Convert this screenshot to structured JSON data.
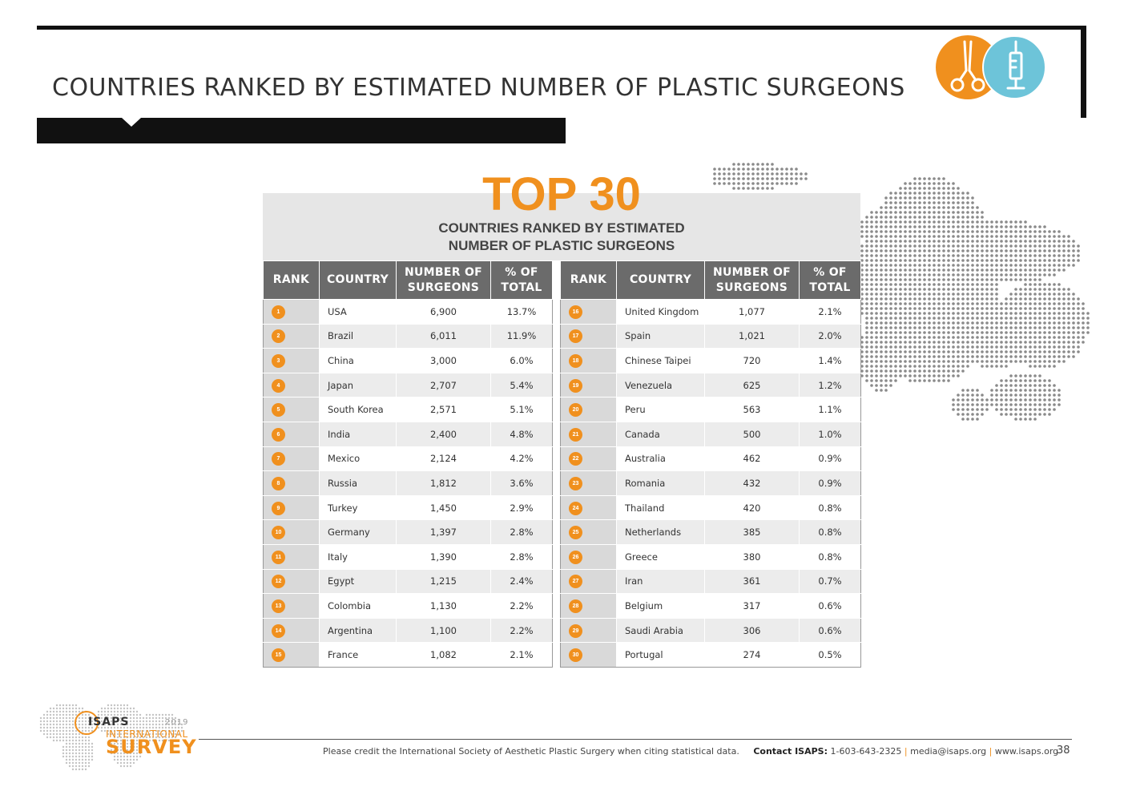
{
  "page": {
    "title": "COUNTRIES RANKED BY ESTIMATED NUMBER OF PLASTIC SURGEONS",
    "page_number": "38"
  },
  "card": {
    "headline": "TOP 30",
    "subtitle_line1": "COUNTRIES RANKED BY ESTIMATED",
    "subtitle_line2": "NUMBER OF PLASTIC SURGEONS"
  },
  "table": {
    "headers": {
      "rank": "RANK",
      "country": "COUNTRY",
      "surgeons_line1": "NUMBER OF",
      "surgeons_line2": "SURGEONS",
      "pct_line1": "% OF",
      "pct_line2": "TOTAL"
    },
    "left": [
      {
        "rank": "1",
        "country": "USA",
        "surgeons": "6,900",
        "pct": "13.7%"
      },
      {
        "rank": "2",
        "country": "Brazil",
        "surgeons": "6,011",
        "pct": "11.9%"
      },
      {
        "rank": "3",
        "country": "China",
        "surgeons": "3,000",
        "pct": "6.0%"
      },
      {
        "rank": "4",
        "country": "Japan",
        "surgeons": "2,707",
        "pct": "5.4%"
      },
      {
        "rank": "5",
        "country": "South Korea",
        "surgeons": "2,571",
        "pct": "5.1%"
      },
      {
        "rank": "6",
        "country": "India",
        "surgeons": "2,400",
        "pct": "4.8%"
      },
      {
        "rank": "7",
        "country": "Mexico",
        "surgeons": "2,124",
        "pct": "4.2%"
      },
      {
        "rank": "8",
        "country": "Russia",
        "surgeons": "1,812",
        "pct": "3.6%"
      },
      {
        "rank": "9",
        "country": "Turkey",
        "surgeons": "1,450",
        "pct": "2.9%"
      },
      {
        "rank": "10",
        "country": "Germany",
        "surgeons": "1,397",
        "pct": "2.8%"
      },
      {
        "rank": "11",
        "country": "Italy",
        "surgeons": "1,390",
        "pct": "2.8%"
      },
      {
        "rank": "12",
        "country": "Egypt",
        "surgeons": "1,215",
        "pct": "2.4%"
      },
      {
        "rank": "13",
        "country": "Colombia",
        "surgeons": "1,130",
        "pct": "2.2%"
      },
      {
        "rank": "14",
        "country": "Argentina",
        "surgeons": "1,100",
        "pct": "2.2%"
      },
      {
        "rank": "15",
        "country": "France",
        "surgeons": "1,082",
        "pct": "2.1%"
      }
    ],
    "right": [
      {
        "rank": "16",
        "country": "United Kingdom",
        "surgeons": "1,077",
        "pct": "2.1%"
      },
      {
        "rank": "17",
        "country": "Spain",
        "surgeons": "1,021",
        "pct": "2.0%"
      },
      {
        "rank": "18",
        "country": "Chinese Taipei",
        "surgeons": "720",
        "pct": "1.4%"
      },
      {
        "rank": "19",
        "country": "Venezuela",
        "surgeons": "625",
        "pct": "1.2%"
      },
      {
        "rank": "20",
        "country": "Peru",
        "surgeons": "563",
        "pct": "1.1%"
      },
      {
        "rank": "21",
        "country": "Canada",
        "surgeons": "500",
        "pct": "1.0%"
      },
      {
        "rank": "22",
        "country": "Australia",
        "surgeons": "462",
        "pct": "0.9%"
      },
      {
        "rank": "23",
        "country": "Romania",
        "surgeons": "432",
        "pct": "0.9%"
      },
      {
        "rank": "24",
        "country": "Thailand",
        "surgeons": "420",
        "pct": "0.8%"
      },
      {
        "rank": "25",
        "country": "Netherlands",
        "surgeons": "385",
        "pct": "0.8%"
      },
      {
        "rank": "26",
        "country": "Greece",
        "surgeons": "380",
        "pct": "0.8%"
      },
      {
        "rank": "27",
        "country": "Iran",
        "surgeons": "361",
        "pct": "0.7%"
      },
      {
        "rank": "28",
        "country": "Belgium",
        "surgeons": "317",
        "pct": "0.6%"
      },
      {
        "rank": "29",
        "country": "Saudi Arabia",
        "surgeons": "306",
        "pct": "0.6%"
      },
      {
        "rank": "30",
        "country": "Portugal",
        "surgeons": "274",
        "pct": "0.5%"
      }
    ]
  },
  "footer": {
    "credit": "Please credit the International Society of Aesthetic Plastic Surgery when citing statistical data.",
    "contact_label": "Contact ISAPS:",
    "phone": "1-603-643-2325",
    "email": "media@isaps.org",
    "website": "www.isaps.org"
  },
  "logo": {
    "brand": "ISAPS",
    "year": "2019",
    "line1": "INTERNATIONAL",
    "line2": "SURVEY"
  },
  "icons": {
    "left": "scissors-icon",
    "right": "syringe-icon"
  },
  "colors": {
    "accent_orange": "#f0901e",
    "accent_blue": "#6dc4d9",
    "header_gray": "#6b6b6b",
    "title_bar": "#111111"
  }
}
